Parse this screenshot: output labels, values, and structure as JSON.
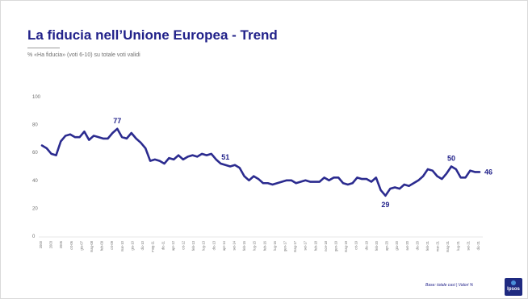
{
  "header": {
    "title": "La fiducia nell’Unione Europea - Trend",
    "subtitle": "% «Ha fiducia» (voti 6-10) su totale voti validi"
  },
  "footer": {
    "note": "Base: totale casi | Valori %",
    "logo_text": "Ipsos"
  },
  "colors": {
    "line": "#2b2b8f",
    "title": "#22228a",
    "axis": "#cfcfcf"
  },
  "chart_data": {
    "type": "line",
    "title": "",
    "xlabel": "",
    "ylabel": "",
    "ylim": [
      0,
      100
    ],
    "yticks": [
      0,
      20,
      40,
      60,
      80,
      100
    ],
    "grid": false,
    "legend": "none",
    "xtick_labels": [
      "2000",
      "2003",
      "2005",
      "ott-06",
      "giu-07",
      "mag-08",
      "feb-09",
      "ott-09",
      "mar-10",
      "giu-10",
      "dic-10",
      "mag-11",
      "dic-11",
      "apr-12",
      "ott-12",
      "feb-13",
      "lug-13",
      "dic-13",
      "apr-14",
      "set-14",
      "feb-15",
      "lug-15",
      "feb-16",
      "lug-16",
      "gen-17",
      "mag-17",
      "set-17",
      "feb-18",
      "nov-18",
      "gen-19",
      "mag-19",
      "ott-19",
      "dic-19",
      "feb-20",
      "apr-20",
      "giu-20",
      "set-20",
      "dic-20",
      "feb-21",
      "mar-21",
      "mag-21",
      "lug-21",
      "set-21",
      "dic-21"
    ],
    "series": [
      {
        "values": [
          65,
          63,
          59,
          58,
          68,
          72,
          73,
          71,
          71,
          75,
          69,
          72,
          71,
          70,
          70,
          74,
          77,
          71,
          70,
          74,
          70,
          67,
          63,
          54,
          55,
          54,
          52,
          56,
          55,
          58,
          55,
          57,
          58,
          57,
          59,
          58,
          59,
          55,
          52,
          51,
          50,
          51,
          49,
          43,
          40,
          43,
          41,
          38,
          38,
          37,
          38,
          39,
          40,
          40,
          38,
          39,
          40,
          39,
          39,
          39,
          42,
          40,
          42,
          42,
          38,
          37,
          38,
          42,
          41,
          41,
          39,
          42,
          33,
          29,
          34,
          35,
          34,
          37,
          36,
          38,
          40,
          43,
          48,
          47,
          43,
          41,
          45,
          50,
          48,
          42,
          42,
          47,
          46,
          46
        ],
        "data_labels": [
          {
            "index": 16,
            "text": "77"
          },
          {
            "index": 39,
            "text": "51"
          },
          {
            "index": 73,
            "text": "29"
          },
          {
            "index": 87,
            "text": "50"
          },
          {
            "index": 93,
            "text": "46"
          }
        ]
      }
    ]
  }
}
